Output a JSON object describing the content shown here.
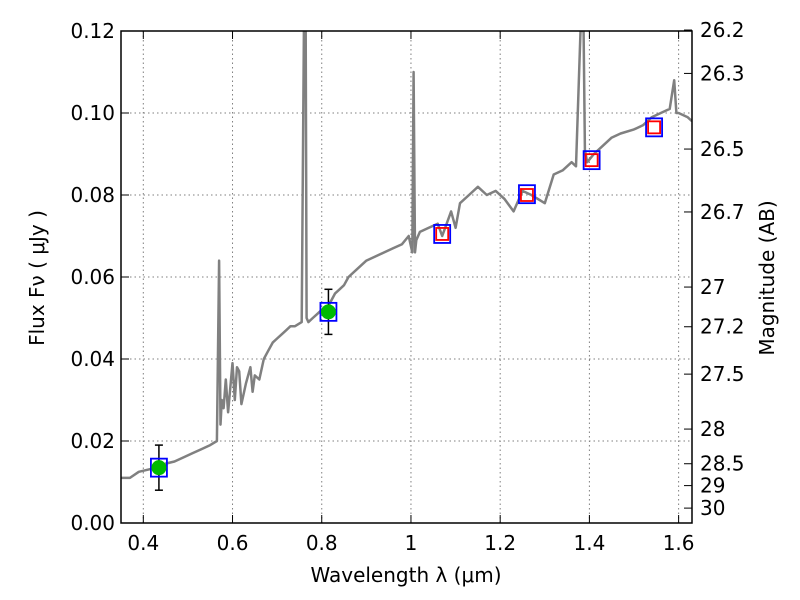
{
  "chart_data": {
    "type": "line",
    "xlabel": "Wavelength  λ (μm)",
    "ylabel": "Flux  Fν  ( μJy )",
    "y2label": "Magnitude (AB)",
    "xlim": [
      0.35,
      1.63
    ],
    "ylim": [
      0.0,
      0.12
    ],
    "grid": true,
    "x_ticks": [
      0.4,
      0.6,
      0.8,
      1.0,
      1.2,
      1.4,
      1.6
    ],
    "x_tick_labels": [
      "0.4",
      "0.6",
      "0.8",
      "1",
      "1.2",
      "1.4",
      "1.6"
    ],
    "y_ticks": [
      0.0,
      0.02,
      0.04,
      0.06,
      0.08,
      0.1,
      0.12
    ],
    "y_tick_labels": [
      "0.00",
      "0.02",
      "0.04",
      "0.06",
      "0.08",
      "0.10",
      "0.12"
    ],
    "y2_ticks": [
      26.2,
      26.3,
      26.5,
      26.7,
      27,
      27.2,
      27.5,
      28,
      28.5,
      29,
      30
    ],
    "y2_tick_labels": [
      "26.2",
      "26.3",
      "26.5",
      "26.7",
      "27",
      "27.2",
      "27.5",
      "28",
      "28.5",
      "29",
      "30"
    ],
    "colors": {
      "spectrum": "#808080",
      "model_box": "#0000ff",
      "observed_fill": "#00bb00",
      "predicted_box": "#ff0000",
      "errorbar": "#000000",
      "grid": "#7f7f7f"
    },
    "spectrum": {
      "x": [
        0.35,
        0.37,
        0.39,
        0.41,
        0.43,
        0.45,
        0.47,
        0.49,
        0.51,
        0.53,
        0.55,
        0.565,
        0.57,
        0.573,
        0.576,
        0.58,
        0.585,
        0.59,
        0.595,
        0.6,
        0.605,
        0.61,
        0.615,
        0.62,
        0.63,
        0.64,
        0.645,
        0.65,
        0.66,
        0.67,
        0.68,
        0.69,
        0.7,
        0.71,
        0.72,
        0.73,
        0.74,
        0.755,
        0.76,
        0.762,
        0.764,
        0.766,
        0.77,
        0.78,
        0.79,
        0.8,
        0.81,
        0.82,
        0.83,
        0.84,
        0.85,
        0.86,
        0.88,
        0.9,
        0.92,
        0.94,
        0.96,
        0.98,
        0.995,
        1.003,
        1.006,
        1.009,
        1.012,
        1.02,
        1.04,
        1.06,
        1.07,
        1.09,
        1.1,
        1.11,
        1.13,
        1.15,
        1.17,
        1.19,
        1.21,
        1.23,
        1.25,
        1.27,
        1.3,
        1.32,
        1.34,
        1.36,
        1.37,
        1.38,
        1.384,
        1.387,
        1.39,
        1.395,
        1.41,
        1.43,
        1.45,
        1.47,
        1.5,
        1.52,
        1.54,
        1.56,
        1.58,
        1.59,
        1.595,
        1.6,
        1.62,
        1.63
      ],
      "y": [
        0.011,
        0.011,
        0.0125,
        0.013,
        0.0135,
        0.0145,
        0.015,
        0.016,
        0.017,
        0.018,
        0.019,
        0.02,
        0.064,
        0.024,
        0.03,
        0.028,
        0.035,
        0.027,
        0.033,
        0.039,
        0.03,
        0.038,
        0.037,
        0.029,
        0.034,
        0.038,
        0.032,
        0.036,
        0.035,
        0.04,
        0.042,
        0.044,
        0.045,
        0.046,
        0.047,
        0.048,
        0.048,
        0.049,
        0.12,
        0.12,
        0.12,
        0.05,
        0.049,
        0.05,
        0.051,
        0.052,
        0.052,
        0.054,
        0.056,
        0.057,
        0.058,
        0.06,
        0.062,
        0.064,
        0.065,
        0.066,
        0.067,
        0.068,
        0.07,
        0.066,
        0.11,
        0.066,
        0.069,
        0.071,
        0.072,
        0.073,
        0.07,
        0.076,
        0.072,
        0.078,
        0.08,
        0.082,
        0.08,
        0.081,
        0.079,
        0.076,
        0.081,
        0.08,
        0.078,
        0.085,
        0.086,
        0.088,
        0.087,
        0.12,
        0.12,
        0.12,
        0.091,
        0.088,
        0.09,
        0.092,
        0.094,
        0.095,
        0.096,
        0.097,
        0.099,
        0.1,
        0.101,
        0.108,
        0.1,
        0.1,
        0.099,
        0.098
      ]
    },
    "model_points": {
      "x": [
        0.435,
        0.815,
        1.07,
        1.26,
        1.405,
        1.545
      ],
      "y": [
        0.0135,
        0.0515,
        0.0705,
        0.0802,
        0.0885,
        0.0965
      ]
    },
    "observed_points": {
      "x": [
        0.435,
        0.815
      ],
      "y": [
        0.0135,
        0.0515
      ],
      "yerr": [
        0.0055,
        0.0055
      ]
    },
    "predicted_points": {
      "x": [
        1.07,
        1.26,
        1.405,
        1.545
      ],
      "y": [
        0.0705,
        0.08,
        0.0885,
        0.0965
      ]
    }
  }
}
